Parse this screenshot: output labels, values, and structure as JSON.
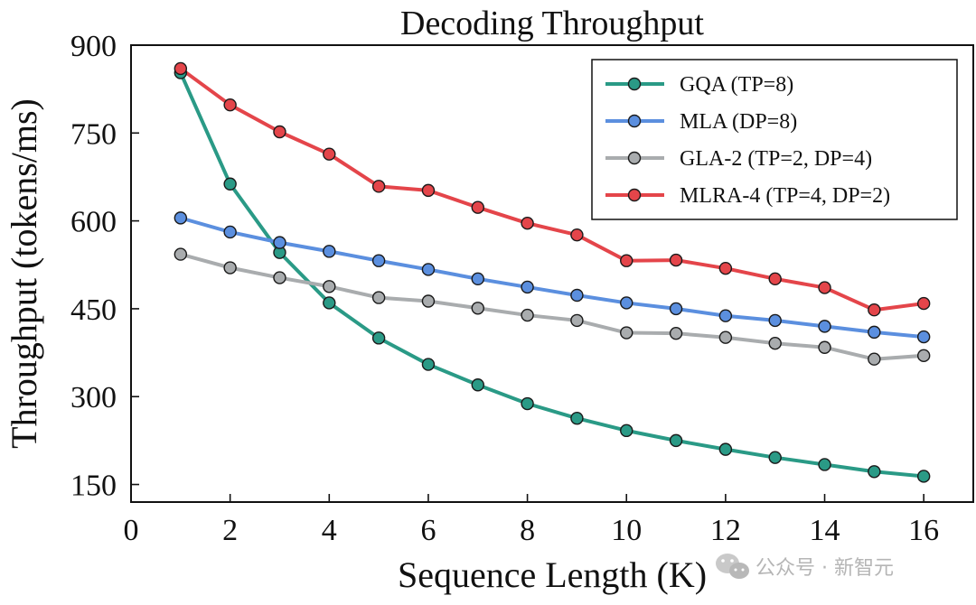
{
  "chart_data": {
    "type": "line",
    "title": "Decoding Throughput",
    "xlabel": "Sequence Length (K)",
    "ylabel": "Throughput (tokens/ms)",
    "xlim": [
      0,
      17
    ],
    "ylim": [
      120,
      900
    ],
    "xticks": [
      0,
      2,
      4,
      6,
      8,
      10,
      12,
      14,
      16
    ],
    "yticks": [
      150,
      300,
      450,
      600,
      750,
      900
    ],
    "legend_position": "top-right",
    "x": [
      1,
      2,
      3,
      4,
      5,
      6,
      7,
      8,
      9,
      10,
      11,
      12,
      13,
      14,
      15,
      16
    ],
    "series": [
      {
        "name": "GQA (TP=8)",
        "color": "#2a9a86",
        "values": [
          853,
          663,
          546,
          460,
          400,
          355,
          320,
          288,
          263,
          242,
          225,
          210,
          196,
          184,
          172,
          164
        ]
      },
      {
        "name": "MLA (DP=8)",
        "color": "#5b8fdf",
        "values": [
          605,
          581,
          563,
          548,
          532,
          517,
          501,
          487,
          473,
          460,
          450,
          438,
          430,
          420,
          410,
          402
        ]
      },
      {
        "name": "GLA-2 (TP=2, DP=4)",
        "color": "#a9acae",
        "values": [
          543,
          520,
          503,
          488,
          469,
          463,
          451,
          439,
          430,
          409,
          408,
          401,
          391,
          384,
          364,
          370
        ]
      },
      {
        "name": "MLRA-4 (TP=4, DP=2)",
        "color": "#e4454a",
        "values": [
          860,
          798,
          752,
          714,
          659,
          652,
          623,
          596,
          576,
          532,
          533,
          519,
          501,
          486,
          448,
          459
        ]
      }
    ]
  },
  "watermark": {
    "text": "公众号 · 新智元",
    "icon": "wechat-icon"
  }
}
